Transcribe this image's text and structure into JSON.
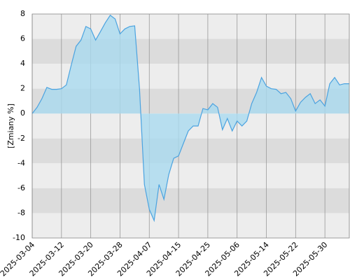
{
  "chart_data": {
    "type": "area",
    "y_label": "[Zmiany %]",
    "x": [
      "2025-03-04",
      "2025-03-05",
      "2025-03-06",
      "2025-03-07",
      "2025-03-10",
      "2025-03-11",
      "2025-03-12",
      "2025-03-13",
      "2025-03-14",
      "2025-03-17",
      "2025-03-18",
      "2025-03-19",
      "2025-03-20",
      "2025-03-21",
      "2025-03-24",
      "2025-03-25",
      "2025-03-26",
      "2025-03-27",
      "2025-03-28",
      "2025-03-31",
      "2025-04-01",
      "2025-04-02",
      "2025-04-03",
      "2025-04-04",
      "2025-04-07",
      "2025-04-08",
      "2025-04-09",
      "2025-04-10",
      "2025-04-11",
      "2025-04-14",
      "2025-04-15",
      "2025-04-16",
      "2025-04-17",
      "2025-04-22",
      "2025-04-23",
      "2025-04-24",
      "2025-04-25",
      "2025-04-28",
      "2025-04-29",
      "2025-04-30",
      "2025-05-02",
      "2025-05-05",
      "2025-05-06",
      "2025-05-07",
      "2025-05-08",
      "2025-05-09",
      "2025-05-12",
      "2025-05-13",
      "2025-05-14",
      "2025-05-15",
      "2025-05-16",
      "2025-05-19",
      "2025-05-20",
      "2025-05-21",
      "2025-05-22",
      "2025-05-23",
      "2025-05-26",
      "2025-05-27",
      "2025-05-28",
      "2025-05-29",
      "2025-05-30",
      "2025-06-02",
      "2025-06-03",
      "2025-06-04",
      "2025-06-05",
      "2025-06-06"
    ],
    "values": [
      0,
      0.5,
      1.2,
      2.1,
      1.95,
      1.95,
      2.0,
      2.3,
      3.9,
      5.4,
      5.9,
      7.0,
      6.8,
      5.9,
      6.6,
      7.3,
      7.9,
      7.6,
      6.4,
      6.8,
      7.0,
      7.05,
      2.0,
      -5.7,
      -7.7,
      -8.6,
      -5.7,
      -6.9,
      -4.9,
      -3.6,
      -3.4,
      -2.4,
      -1.4,
      -1.0,
      -1.0,
      0.4,
      0.3,
      0.8,
      0.5,
      -1.3,
      -0.4,
      -1.4,
      -0.6,
      -1.0,
      -0.6,
      0.8,
      1.7,
      2.9,
      2.2,
      2.0,
      1.95,
      1.6,
      1.7,
      1.2,
      0.2,
      0.9,
      1.3,
      1.6,
      0.8,
      1.1,
      0.6,
      2.4,
      2.9,
      2.3,
      2.4,
      2.4
    ],
    "line_color": "#4ba3e0",
    "fill_color": "#a9d9ef",
    "ylim": [
      -10,
      8
    ],
    "yticks": [
      8,
      6,
      4,
      2,
      0,
      -2,
      -4,
      -6,
      -8,
      -10
    ],
    "xticks": [
      "2025-03-04",
      "2025-03-12",
      "2025-03-20",
      "2025-03-28",
      "2025-04-07",
      "2025-04-15",
      "2025-04-25",
      "2025-05-06",
      "2025-05-14",
      "2025-05-22",
      "2025-05-30"
    ],
    "grid": true
  }
}
